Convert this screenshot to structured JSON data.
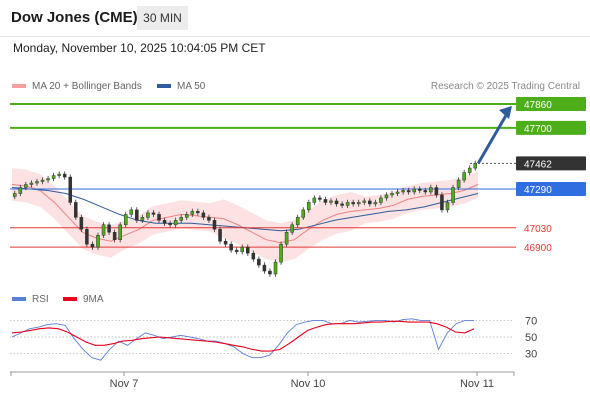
{
  "header": {
    "title": "Dow Jones (CME)",
    "interval": "30 MIN"
  },
  "datetime": "Monday, November 10, 2025 10:04:05 PM CET",
  "legend": {
    "bollinger": {
      "label": "MA 20 + Bollinger Bands",
      "color": "#f08080"
    },
    "ma50": {
      "label": "MA 50",
      "color": "#2f5c9a"
    },
    "rsi": {
      "label": "RSI",
      "color": "#5b7fd6"
    },
    "ma9": {
      "label": "9MA",
      "color": "#e8001c"
    }
  },
  "credit": "Research © 2025 Trading Central",
  "chart_data": [
    {
      "type": "candlestick",
      "title": "Dow Jones (CME)",
      "x_ticks": [
        "Nov 7",
        "Nov 10",
        "Nov 11"
      ],
      "levels": [
        {
          "value": 47860,
          "label": "47860",
          "style": "resistance",
          "color": "#4caf1a"
        },
        {
          "value": 47700,
          "label": "47700",
          "style": "resistance",
          "color": "#4caf1a"
        },
        {
          "value": 47462,
          "label": "47462",
          "style": "last",
          "color": "#333333"
        },
        {
          "value": 47290,
          "label": "47290",
          "style": "pivot",
          "color": "#2e6ee0"
        },
        {
          "value": 47030,
          "label": "47030",
          "style": "support",
          "color": "#e53935"
        },
        {
          "value": 46900,
          "label": "46900",
          "style": "support",
          "color": "#e53935"
        }
      ],
      "close": [
        47260,
        47300,
        47320,
        47330,
        47340,
        47350,
        47360,
        47380,
        47390,
        47370,
        47200,
        47100,
        47020,
        46920,
        46900,
        46980,
        47050,
        47000,
        46950,
        47050,
        47120,
        47150,
        47080,
        47100,
        47130,
        47120,
        47080,
        47060,
        47050,
        47080,
        47100,
        47120,
        47140,
        47130,
        47100,
        47080,
        47020,
        46940,
        46920,
        46880,
        46870,
        46900,
        46860,
        46820,
        46780,
        46740,
        46720,
        46800,
        46920,
        47000,
        47050,
        47100,
        47150,
        47200,
        47230,
        47220,
        47200,
        47210,
        47190,
        47180,
        47200,
        47190,
        47200,
        47210,
        47190,
        47200,
        47230,
        47250,
        47260,
        47270,
        47280,
        47270,
        47290,
        47280,
        47270,
        47300,
        47250,
        47150,
        47200,
        47300,
        47350,
        47400,
        47430,
        47462
      ],
      "ma20_approx": [
        47320,
        47310,
        47280,
        47200,
        47100,
        47000,
        46960,
        46940,
        46980,
        47020,
        47080,
        47100,
        47120,
        47110,
        47100,
        47090,
        47050,
        47000,
        46950,
        46930,
        46950,
        47020,
        47080,
        47120,
        47140,
        47150,
        47160,
        47180,
        47220,
        47240,
        47250,
        47260,
        47280,
        47320
      ],
      "ma50_approx": [
        47300,
        47290,
        47280,
        47260,
        47220,
        47170,
        47120,
        47080,
        47060,
        47060,
        47060,
        47050,
        47040,
        47030,
        47020,
        47010,
        47020,
        47050,
        47080,
        47100,
        47120,
        47140,
        47150,
        47170,
        47200,
        47230,
        47260
      ],
      "ylim": [
        46680,
        47920
      ]
    },
    {
      "type": "line",
      "title": "RSI",
      "series": [
        {
          "name": "RSI",
          "values": [
            50,
            55,
            60,
            62,
            65,
            66,
            64,
            48,
            35,
            25,
            22,
            35,
            45,
            40,
            48,
            55,
            52,
            48,
            50,
            52,
            50,
            48,
            45,
            45,
            42,
            38,
            30,
            25,
            25,
            28,
            40,
            55,
            65,
            68,
            70,
            70,
            66,
            66,
            70,
            68,
            69,
            70,
            70,
            68,
            71,
            72,
            70,
            70,
            35,
            55,
            66,
            70,
            70
          ]
        },
        {
          "name": "9MA",
          "values": [
            55,
            56,
            58,
            60,
            61,
            60,
            56,
            50,
            44,
            40,
            40,
            42,
            45,
            46,
            48,
            49,
            50,
            49,
            48,
            47,
            46,
            45,
            44,
            42,
            40,
            38,
            35,
            33,
            33,
            35,
            42,
            50,
            58,
            62,
            65,
            66,
            66,
            66,
            67,
            68,
            68,
            69,
            69,
            68,
            68,
            68,
            66,
            62,
            56,
            55,
            60
          ]
        }
      ],
      "y_ticks": [
        70,
        50,
        30
      ],
      "ylim": [
        15,
        85
      ]
    }
  ]
}
